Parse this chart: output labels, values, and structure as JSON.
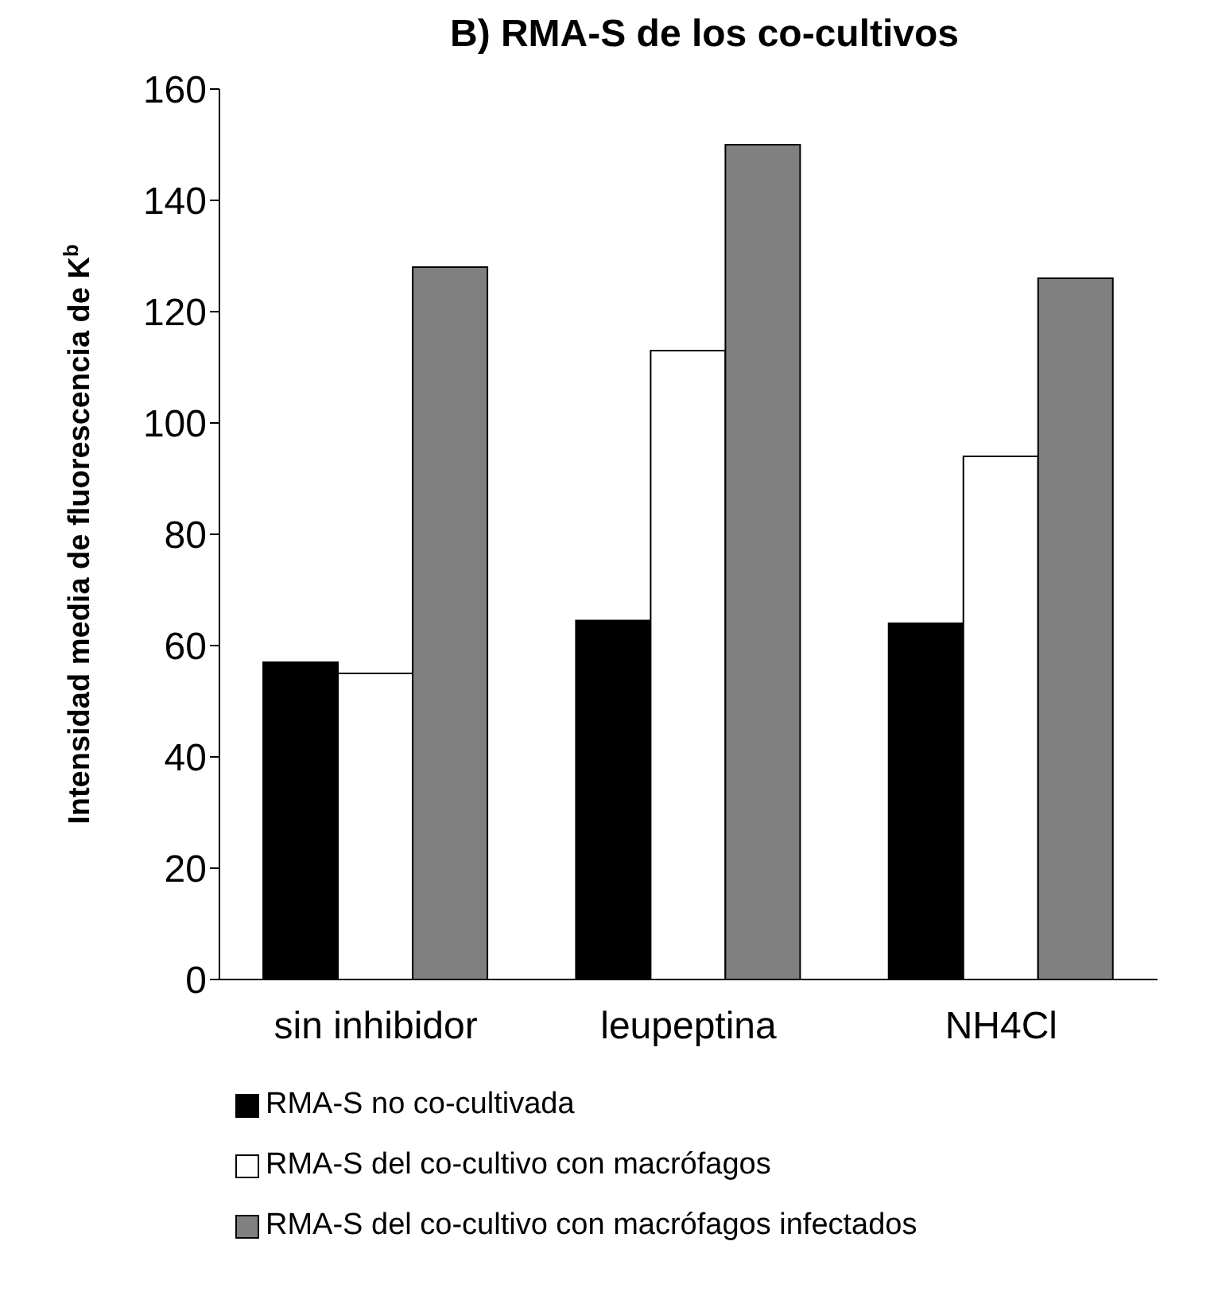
{
  "chart_data": {
    "type": "bar",
    "title": "B)  RMA-S de los co-cultivos",
    "ylabel": "Intensidad media de fluorescencia de K$^{b}$",
    "categories": [
      "sin inhibidor",
      "leupeptina",
      "NH4Cl"
    ],
    "series": [
      {
        "name": "RMA-S no co-cultivada",
        "color": "#000000",
        "values": [
          57,
          64.5,
          64
        ]
      },
      {
        "name": "RMA-S del co-cultivo con macrófagos",
        "color": "#ffffff",
        "values": [
          55,
          113,
          94
        ]
      },
      {
        "name": "RMA-S del co-cultivo con macrófagos infectados",
        "color": "#808080",
        "values": [
          128,
          150,
          126
        ]
      }
    ],
    "ylim": [
      0,
      160
    ],
    "yticks": [
      0,
      20,
      40,
      60,
      80,
      100,
      120,
      140,
      160
    ],
    "grid": false,
    "legend": "bottom"
  }
}
